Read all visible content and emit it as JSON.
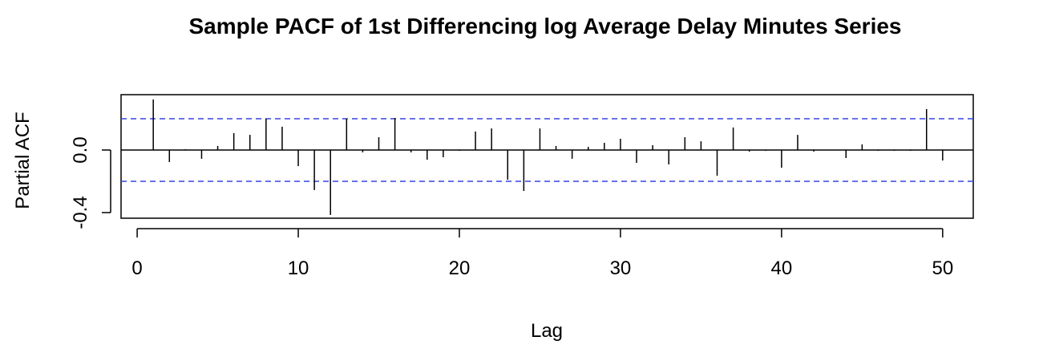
{
  "chart_data": {
    "type": "stem",
    "title": "Sample PACF of 1st Differencing log Average Delay Minutes Series",
    "xlabel": "Lag",
    "ylabel": "Partial ACF",
    "x": [
      1,
      2,
      3,
      4,
      5,
      6,
      7,
      8,
      9,
      10,
      11,
      12,
      13,
      14,
      15,
      16,
      17,
      18,
      19,
      20,
      21,
      22,
      23,
      24,
      25,
      26,
      27,
      28,
      29,
      30,
      31,
      32,
      33,
      34,
      35,
      36,
      37,
      38,
      39,
      40,
      41,
      42,
      43,
      44,
      45,
      46,
      47,
      48,
      49,
      50
    ],
    "values": [
      0.323,
      -0.077,
      0.005,
      -0.056,
      0.026,
      0.108,
      0.097,
      0.2,
      0.149,
      -0.103,
      -0.256,
      -0.415,
      0.2,
      -0.015,
      0.082,
      0.205,
      -0.015,
      -0.062,
      -0.046,
      -0.005,
      0.118,
      0.138,
      -0.19,
      -0.262,
      0.138,
      0.026,
      -0.056,
      0.02,
      0.046,
      0.072,
      -0.082,
      0.031,
      -0.092,
      0.082,
      0.056,
      -0.164,
      0.144,
      -0.01,
      -0.005,
      -0.113,
      0.097,
      -0.01,
      0,
      -0.051,
      0.036,
      -0.005,
      -0.005,
      -0.005,
      0.262,
      -0.067
    ],
    "color": "#000000",
    "conf_limit": 0.2,
    "conf_color": "#3344ee",
    "xlim": [
      -1.0,
      51.9
    ],
    "ylim": [
      -0.436,
      0.354
    ],
    "xticks": [
      0,
      10,
      20,
      30,
      40,
      50
    ],
    "yticks": [
      {
        "value": -0.4,
        "label": "-0.4"
      },
      {
        "value": 0,
        "label": "0.0"
      }
    ]
  }
}
